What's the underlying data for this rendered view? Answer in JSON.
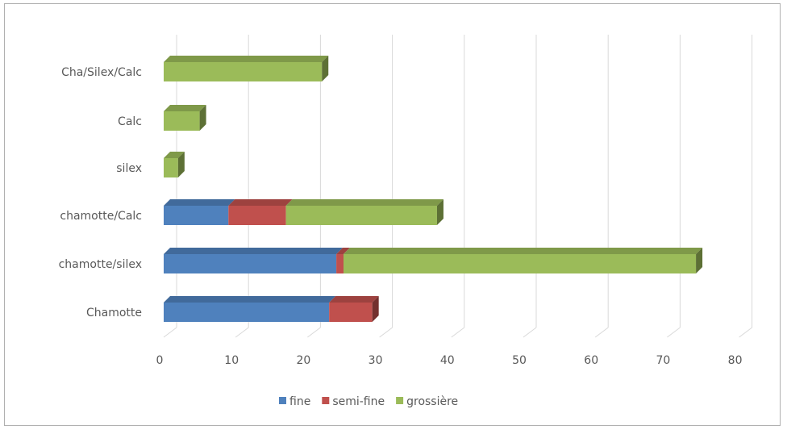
{
  "chart_data": {
    "type": "bar",
    "orientation": "horizontal",
    "stacked": true,
    "style": "3d",
    "title": "",
    "xlabel": "",
    "ylabel": "",
    "xlim": [
      0,
      80
    ],
    "x_ticks": [
      "0",
      "10",
      "20",
      "30",
      "40",
      "50",
      "60",
      "70",
      "80"
    ],
    "categories": [
      "Chamotte",
      "chamotte/silex",
      "chamotte/Calc",
      "silex",
      "Calc",
      "Cha/Silex/Calc"
    ],
    "series": [
      {
        "name": "fine",
        "color": "#4f81bd",
        "values": [
          23,
          24,
          9,
          0,
          0,
          0
        ]
      },
      {
        "name": "semi-fine",
        "color": "#c0504d",
        "values": [
          6,
          1,
          8,
          0,
          0,
          0
        ]
      },
      {
        "name": "grossière",
        "color": "#9bbb59",
        "values": [
          0,
          49,
          21,
          2,
          5,
          22
        ]
      }
    ],
    "grid": "vertical",
    "legend_position": "bottom"
  }
}
